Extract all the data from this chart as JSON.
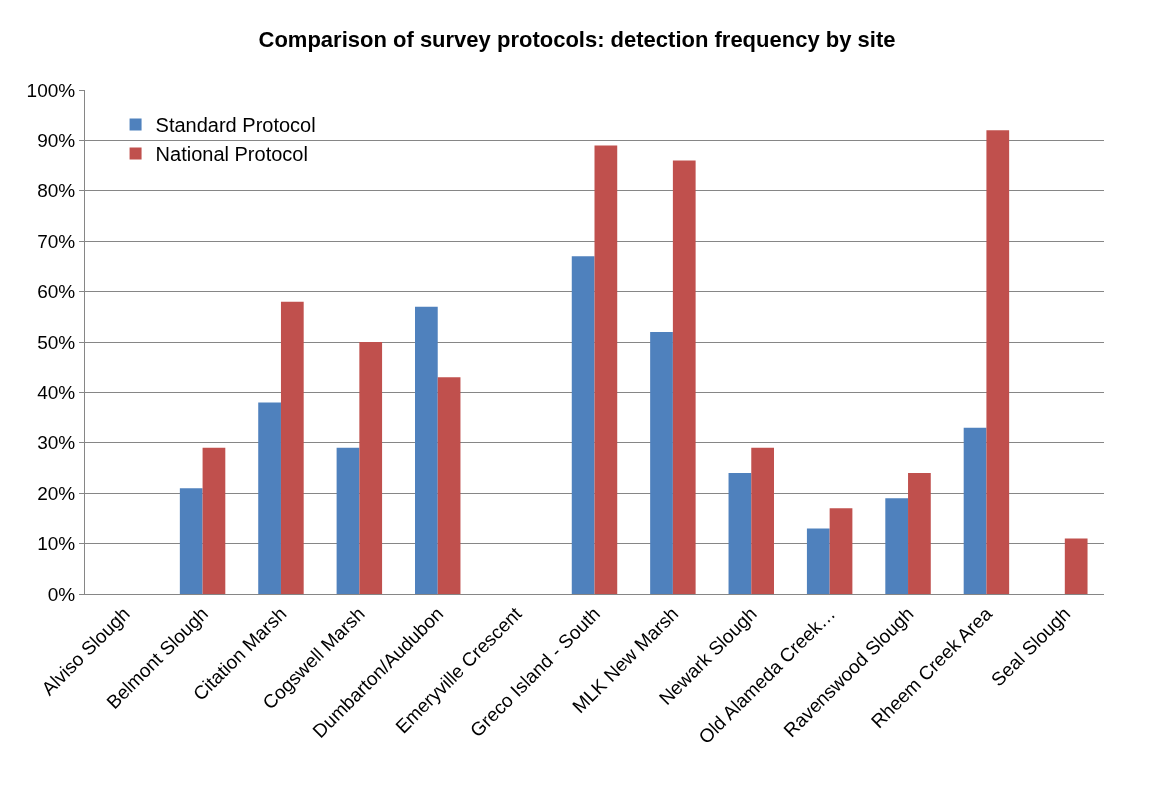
{
  "chart_data": {
    "type": "bar",
    "title": "Comparison of survey protocols: detection frequency by site",
    "categories": [
      "Alviso Slough",
      "Belmont Slough",
      "Citation Marsh",
      "Cogswell Marsh",
      "Dumbarton/Audubon",
      "Emeryville Crescent",
      "Greco Island - South",
      "MLK New Marsh",
      "Newark Slough",
      "Old Alameda Creek…",
      "Ravenswood Slough",
      "Rheem Creek Area",
      "Seal Slough"
    ],
    "series": [
      {
        "name": "Standard Protocol",
        "color": "#4f81bd",
        "values": [
          0,
          21,
          38,
          29,
          57,
          0,
          67,
          52,
          24,
          13,
          19,
          33,
          0
        ]
      },
      {
        "name": "National Protocol",
        "color": "#c0504d",
        "values": [
          0,
          29,
          58,
          50,
          43,
          0,
          89,
          86,
          29,
          17,
          24,
          92,
          11
        ]
      }
    ],
    "ylim": [
      0,
      100
    ],
    "yticks": [
      {
        "value": 0,
        "label": "0%"
      },
      {
        "value": 10,
        "label": "10%"
      },
      {
        "value": 20,
        "label": "20%"
      },
      {
        "value": 30,
        "label": "30%"
      },
      {
        "value": 40,
        "label": "40%"
      },
      {
        "value": 50,
        "label": "50%"
      },
      {
        "value": 60,
        "label": "60%"
      },
      {
        "value": 70,
        "label": "70%"
      },
      {
        "value": 80,
        "label": "80%"
      },
      {
        "value": 90,
        "label": "90%"
      },
      {
        "value": 100,
        "label": "100%"
      }
    ],
    "grid": "y",
    "legend": "top left"
  }
}
